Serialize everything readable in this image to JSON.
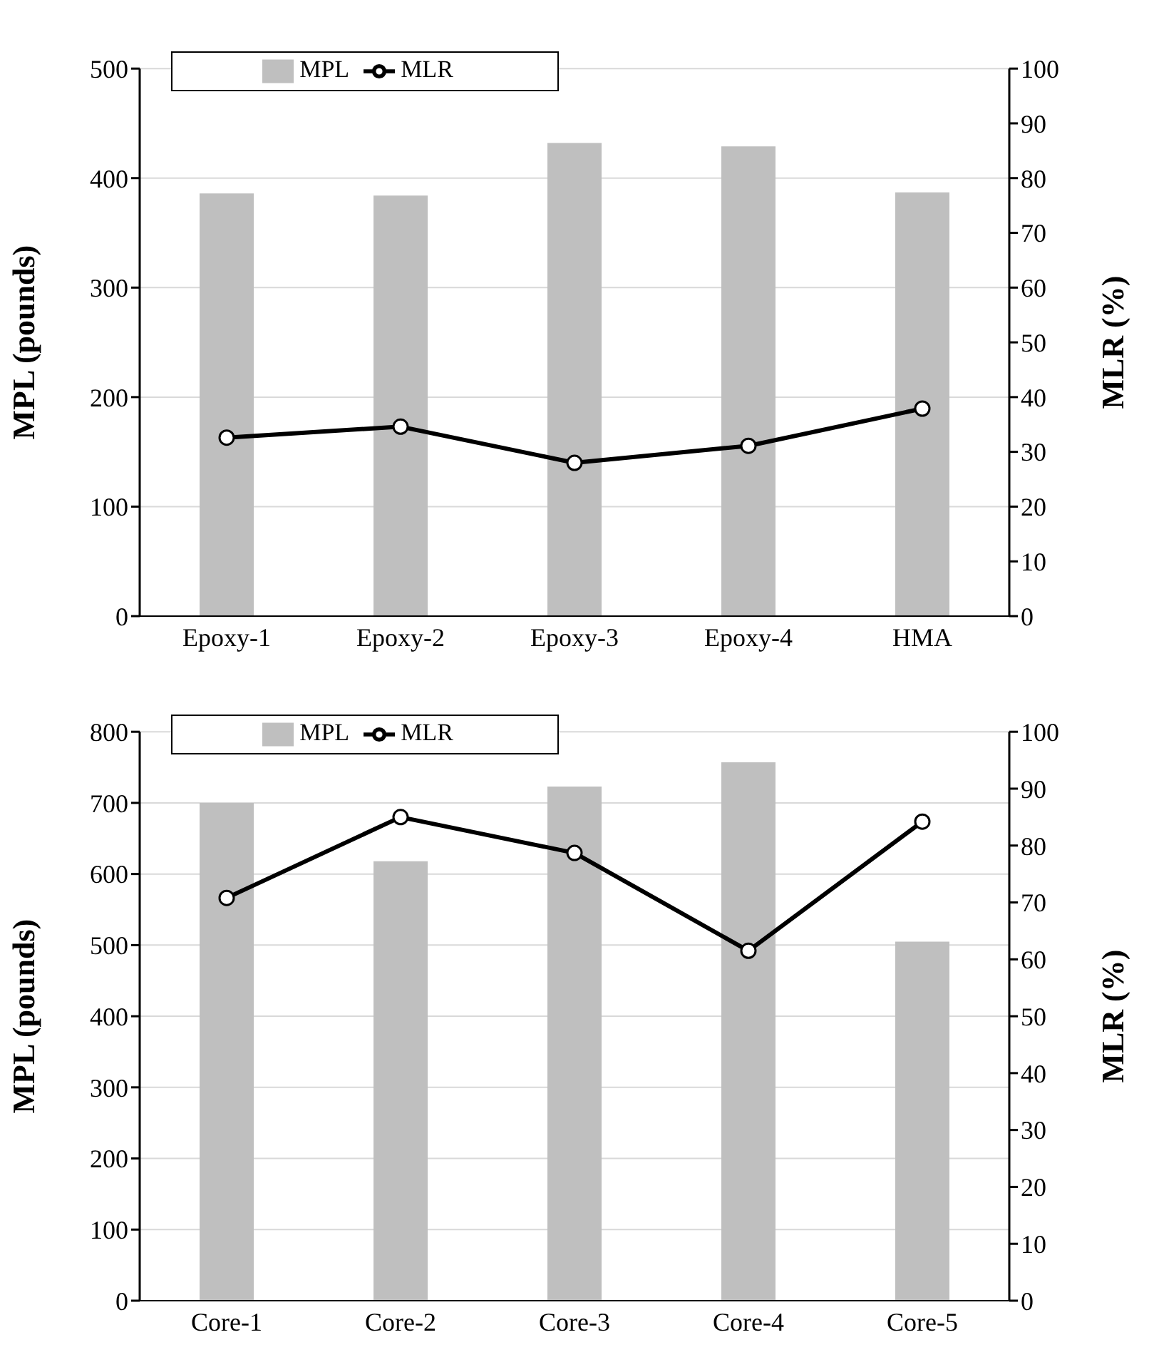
{
  "chart_data": [
    {
      "type": "bar",
      "categories": [
        "Epoxy-1",
        "Epoxy-2",
        "Epoxy-3",
        "Epoxy-4",
        "HMA"
      ],
      "ylabel": "MPL (pounds)",
      "y2label": "MLR (%)",
      "ylim": [
        0,
        500
      ],
      "yticks": [
        0,
        100,
        200,
        300,
        400,
        500
      ],
      "y2lim": [
        0,
        100
      ],
      "y2ticks": [
        0,
        10,
        20,
        30,
        40,
        50,
        60,
        70,
        80,
        90,
        100
      ],
      "grid": "y",
      "legend": "top left",
      "series": [
        {
          "name": "MPL",
          "color": "#bfbfbf",
          "values": [
            386,
            384,
            432,
            429,
            387
          ]
        },
        {
          "name": "MLR",
          "type": "line",
          "axis": "y2",
          "color": "#000000",
          "marker": "circle",
          "values": [
            32.6,
            34.6,
            28.0,
            31.1,
            37.9
          ]
        }
      ]
    },
    {
      "type": "bar",
      "categories": [
        "Core-1",
        "Core-2",
        "Core-3",
        "Core-4",
        "Core-5"
      ],
      "ylabel": "MPL (pounds)",
      "y2label": "MLR (%)",
      "ylim": [
        0,
        800
      ],
      "yticks": [
        0,
        100,
        200,
        300,
        400,
        500,
        600,
        700,
        800
      ],
      "y2lim": [
        0,
        100
      ],
      "y2ticks": [
        0,
        10,
        20,
        30,
        40,
        50,
        60,
        70,
        80,
        90,
        100
      ],
      "grid": "y",
      "legend": "top left",
      "series": [
        {
          "name": "MPL",
          "color": "#bfbfbf",
          "values": [
            700,
            618,
            723,
            757,
            505
          ]
        },
        {
          "name": "MLR",
          "type": "line",
          "axis": "y2",
          "color": "#000000",
          "marker": "circle",
          "values": [
            70.8,
            85.0,
            78.7,
            61.5,
            84.2
          ]
        }
      ]
    }
  ]
}
